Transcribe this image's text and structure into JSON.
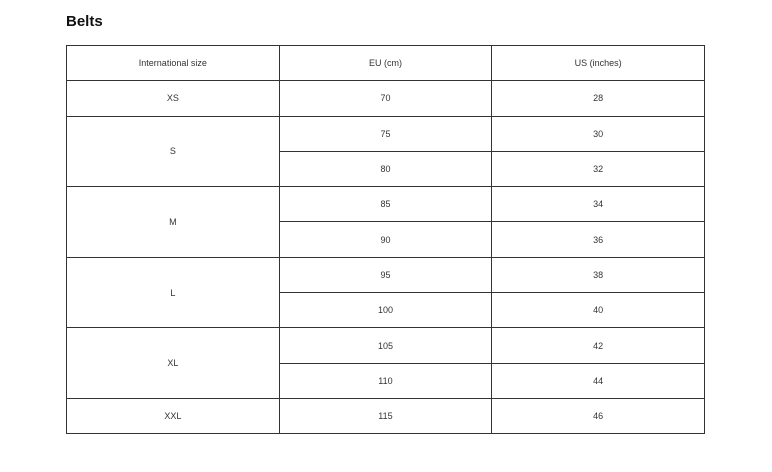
{
  "title": "Belts",
  "headers": [
    "International size",
    "EU (cm)",
    "US (inches)"
  ],
  "groups": [
    {
      "size": "XS",
      "rows": [
        {
          "eu": "70",
          "us": "28"
        }
      ]
    },
    {
      "size": "S",
      "rows": [
        {
          "eu": "75",
          "us": "30"
        },
        {
          "eu": "80",
          "us": "32"
        }
      ]
    },
    {
      "size": "M",
      "rows": [
        {
          "eu": "85",
          "us": "34"
        },
        {
          "eu": "90",
          "us": "36"
        }
      ]
    },
    {
      "size": "L",
      "rows": [
        {
          "eu": "95",
          "us": "38"
        },
        {
          "eu": "100",
          "us": "40"
        }
      ]
    },
    {
      "size": "XL",
      "rows": [
        {
          "eu": "105",
          "us": "42"
        },
        {
          "eu": "110",
          "us": "44"
        }
      ]
    },
    {
      "size": "XXL",
      "rows": [
        {
          "eu": "115",
          "us": "46"
        }
      ]
    }
  ]
}
